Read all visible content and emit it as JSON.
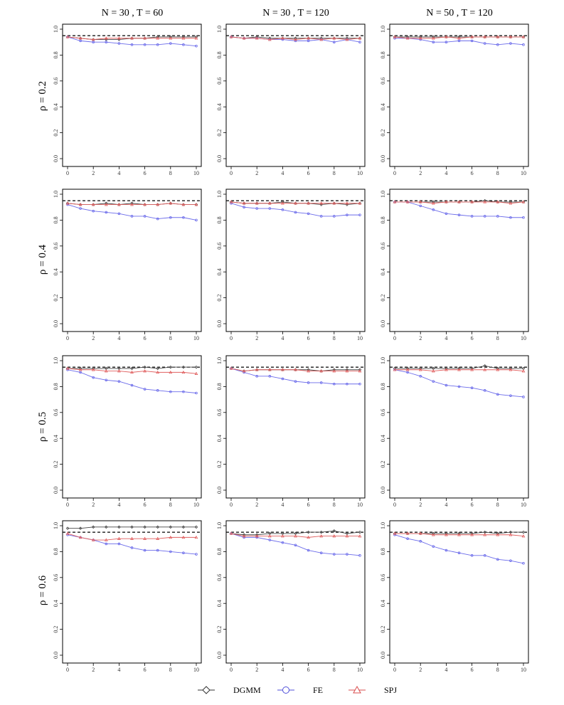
{
  "chart_data": {
    "type": "line",
    "layout": "4x3 grid of small multiples",
    "column_titles": [
      "N = 30 , T = 60",
      "N = 30 , T = 120",
      "N = 50 , T = 120"
    ],
    "row_labels": [
      "ρ = 0.2",
      "ρ = 0.4",
      "ρ = 0.5",
      "ρ = 0.6"
    ],
    "x": [
      0,
      1,
      2,
      3,
      4,
      5,
      6,
      7,
      8,
      9,
      10
    ],
    "xticks": [
      0,
      2,
      4,
      6,
      8,
      10
    ],
    "xtick_labels": [
      "0",
      "2",
      "4",
      "6",
      "8",
      "10"
    ],
    "ylim": [
      0,
      1.0
    ],
    "yticks": [
      0,
      0.2,
      0.4,
      0.6,
      0.8,
      1.0
    ],
    "ytick_labels": [
      "0.0",
      "0.2",
      "0.4",
      "0.6",
      "0.8",
      "1.0"
    ],
    "reference_line": {
      "y": 0.95,
      "style": "dashed",
      "color": "#000000"
    },
    "grid": false,
    "legend": {
      "placement": "bottom",
      "entries": [
        {
          "name": "DGMM",
          "marker": "diamond",
          "color": "#333333"
        },
        {
          "name": "FE",
          "marker": "circle",
          "color": "#4f4fd9"
        },
        {
          "name": "SPJ",
          "marker": "triangle",
          "color": "#d94f4f"
        }
      ]
    },
    "series_colors": {
      "DGMM": "#444444",
      "FE": "#6b6bea",
      "SPJ": "#e06060"
    },
    "panels": [
      {
        "row": 0,
        "col": 0,
        "series": [
          {
            "name": "DGMM",
            "values": [
              0.94,
              0.93,
              0.92,
              0.92,
              0.92,
              0.93,
              0.93,
              0.94,
              0.94,
              0.94,
              0.94
            ]
          },
          {
            "name": "FE",
            "values": [
              0.94,
              0.91,
              0.9,
              0.9,
              0.89,
              0.88,
              0.88,
              0.88,
              0.89,
              0.88,
              0.87
            ]
          },
          {
            "name": "SPJ",
            "values": [
              0.94,
              0.93,
              0.92,
              0.93,
              0.93,
              0.93,
              0.93,
              0.93,
              0.93,
              0.93,
              0.93
            ]
          }
        ]
      },
      {
        "row": 0,
        "col": 1,
        "series": [
          {
            "name": "DGMM",
            "values": [
              0.94,
              0.93,
              0.94,
              0.93,
              0.93,
              0.93,
              0.93,
              0.93,
              0.93,
              0.93,
              0.93
            ]
          },
          {
            "name": "FE",
            "values": [
              0.94,
              0.93,
              0.93,
              0.92,
              0.92,
              0.91,
              0.91,
              0.92,
              0.9,
              0.92,
              0.9
            ]
          },
          {
            "name": "SPJ",
            "values": [
              0.94,
              0.93,
              0.93,
              0.92,
              0.93,
              0.92,
              0.93,
              0.92,
              0.93,
              0.92,
              0.93
            ]
          }
        ]
      },
      {
        "row": 0,
        "col": 2,
        "series": [
          {
            "name": "DGMM",
            "values": [
              0.94,
              0.94,
              0.94,
              0.94,
              0.94,
              0.94,
              0.94,
              0.94,
              0.94,
              0.94,
              0.94
            ]
          },
          {
            "name": "FE",
            "values": [
              0.93,
              0.93,
              0.92,
              0.9,
              0.9,
              0.91,
              0.91,
              0.89,
              0.88,
              0.89,
              0.88
            ]
          },
          {
            "name": "SPJ",
            "values": [
              0.94,
              0.93,
              0.93,
              0.93,
              0.94,
              0.93,
              0.94,
              0.94,
              0.94,
              0.94,
              0.94
            ]
          }
        ]
      },
      {
        "row": 1,
        "col": 0,
        "series": [
          {
            "name": "DGMM",
            "values": [
              0.93,
              0.92,
              0.92,
              0.93,
              0.92,
              0.93,
              0.92,
              0.92,
              0.93,
              0.92,
              0.92
            ]
          },
          {
            "name": "FE",
            "values": [
              0.92,
              0.89,
              0.87,
              0.86,
              0.85,
              0.83,
              0.83,
              0.81,
              0.82,
              0.82,
              0.8
            ]
          },
          {
            "name": "SPJ",
            "values": [
              0.93,
              0.92,
              0.92,
              0.92,
              0.92,
              0.92,
              0.92,
              0.92,
              0.93,
              0.92,
              0.92
            ]
          }
        ]
      },
      {
        "row": 1,
        "col": 1,
        "series": [
          {
            "name": "DGMM",
            "values": [
              0.94,
              0.93,
              0.93,
              0.93,
              0.94,
              0.93,
              0.93,
              0.92,
              0.93,
              0.92,
              0.93
            ]
          },
          {
            "name": "FE",
            "values": [
              0.93,
              0.9,
              0.89,
              0.89,
              0.88,
              0.86,
              0.85,
              0.83,
              0.83,
              0.84,
              0.84
            ]
          },
          {
            "name": "SPJ",
            "values": [
              0.94,
              0.93,
              0.93,
              0.93,
              0.93,
              0.93,
              0.93,
              0.93,
              0.93,
              0.93,
              0.93
            ]
          }
        ]
      },
      {
        "row": 1,
        "col": 2,
        "series": [
          {
            "name": "DGMM",
            "values": [
              0.94,
              0.94,
              0.94,
              0.94,
              0.94,
              0.94,
              0.94,
              0.95,
              0.94,
              0.94,
              0.94
            ]
          },
          {
            "name": "FE",
            "values": [
              0.94,
              0.94,
              0.91,
              0.88,
              0.85,
              0.84,
              0.83,
              0.83,
              0.83,
              0.82,
              0.82
            ]
          },
          {
            "name": "SPJ",
            "values": [
              0.94,
              0.94,
              0.94,
              0.93,
              0.94,
              0.94,
              0.94,
              0.94,
              0.94,
              0.93,
              0.94
            ]
          }
        ]
      },
      {
        "row": 2,
        "col": 0,
        "series": [
          {
            "name": "DGMM",
            "values": [
              0.94,
              0.94,
              0.94,
              0.94,
              0.94,
              0.94,
              0.95,
              0.94,
              0.95,
              0.95,
              0.95
            ]
          },
          {
            "name": "FE",
            "values": [
              0.93,
              0.91,
              0.87,
              0.85,
              0.84,
              0.81,
              0.78,
              0.77,
              0.76,
              0.76,
              0.75
            ]
          },
          {
            "name": "SPJ",
            "values": [
              0.94,
              0.93,
              0.93,
              0.92,
              0.92,
              0.91,
              0.92,
              0.91,
              0.91,
              0.91,
              0.9
            ]
          }
        ]
      },
      {
        "row": 2,
        "col": 1,
        "series": [
          {
            "name": "DGMM",
            "values": [
              0.94,
              0.92,
              0.93,
              0.93,
              0.93,
              0.93,
              0.93,
              0.92,
              0.93,
              0.93,
              0.93
            ]
          },
          {
            "name": "FE",
            "values": [
              0.94,
              0.91,
              0.88,
              0.88,
              0.86,
              0.84,
              0.83,
              0.83,
              0.82,
              0.82,
              0.82
            ]
          },
          {
            "name": "SPJ",
            "values": [
              0.94,
              0.92,
              0.93,
              0.93,
              0.93,
              0.93,
              0.92,
              0.92,
              0.92,
              0.92,
              0.92
            ]
          }
        ]
      },
      {
        "row": 2,
        "col": 2,
        "series": [
          {
            "name": "DGMM",
            "values": [
              0.94,
              0.94,
              0.94,
              0.94,
              0.94,
              0.94,
              0.94,
              0.96,
              0.94,
              0.94,
              0.94
            ]
          },
          {
            "name": "FE",
            "values": [
              0.93,
              0.91,
              0.88,
              0.84,
              0.81,
              0.8,
              0.79,
              0.77,
              0.74,
              0.73,
              0.72
            ]
          },
          {
            "name": "SPJ",
            "values": [
              0.93,
              0.93,
              0.93,
              0.92,
              0.93,
              0.93,
              0.93,
              0.93,
              0.93,
              0.93,
              0.92
            ]
          }
        ]
      },
      {
        "row": 3,
        "col": 0,
        "series": [
          {
            "name": "DGMM",
            "values": [
              0.98,
              0.98,
              0.99,
              0.99,
              0.99,
              0.99,
              0.99,
              0.99,
              0.99,
              0.99,
              0.99
            ]
          },
          {
            "name": "FE",
            "values": [
              0.93,
              0.91,
              0.89,
              0.86,
              0.86,
              0.83,
              0.81,
              0.81,
              0.8,
              0.79,
              0.78
            ]
          },
          {
            "name": "SPJ",
            "values": [
              0.94,
              0.91,
              0.89,
              0.89,
              0.9,
              0.9,
              0.9,
              0.9,
              0.91,
              0.91,
              0.91
            ]
          }
        ]
      },
      {
        "row": 3,
        "col": 1,
        "series": [
          {
            "name": "DGMM",
            "values": [
              0.94,
              0.93,
              0.93,
              0.94,
              0.94,
              0.94,
              0.95,
              0.95,
              0.96,
              0.94,
              0.95
            ]
          },
          {
            "name": "FE",
            "values": [
              0.94,
              0.91,
              0.91,
              0.89,
              0.87,
              0.85,
              0.81,
              0.79,
              0.78,
              0.78,
              0.77
            ]
          },
          {
            "name": "SPJ",
            "values": [
              0.94,
              0.92,
              0.92,
              0.92,
              0.92,
              0.92,
              0.91,
              0.92,
              0.92,
              0.92,
              0.92
            ]
          }
        ]
      },
      {
        "row": 3,
        "col": 2,
        "series": [
          {
            "name": "DGMM",
            "values": [
              0.94,
              0.94,
              0.94,
              0.94,
              0.94,
              0.94,
              0.94,
              0.95,
              0.94,
              0.95,
              0.95
            ]
          },
          {
            "name": "FE",
            "values": [
              0.93,
              0.9,
              0.88,
              0.84,
              0.81,
              0.79,
              0.77,
              0.77,
              0.74,
              0.73,
              0.71
            ]
          },
          {
            "name": "SPJ",
            "values": [
              0.94,
              0.94,
              0.94,
              0.93,
              0.93,
              0.93,
              0.93,
              0.93,
              0.93,
              0.93,
              0.92
            ]
          }
        ]
      }
    ]
  }
}
